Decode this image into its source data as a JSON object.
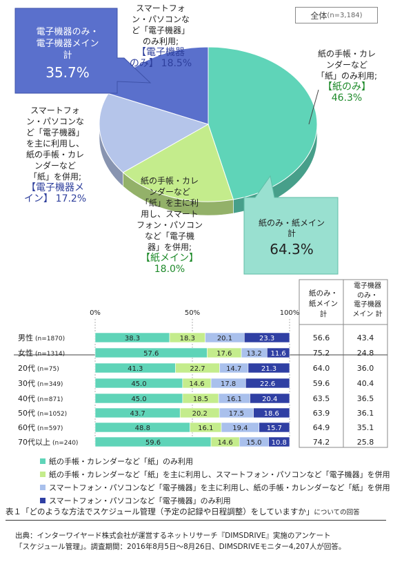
{
  "total_badge": {
    "label": "全体",
    "n": "(n=3,184)"
  },
  "pie_labels": {
    "paper_only": {
      "text": [
        "紙の手帳・カレ",
        "ンダーなど",
        "「紙」のみ利用;"
      ],
      "highlight": "【紙のみ】",
      "pct": "46.3%"
    },
    "paper_main": {
      "text": [
        "紙の手帳・カレ",
        "ンダーなど",
        "「紙」を主に利",
        "用し、スマート",
        "フォン・パソコン",
        "など「電子機",
        "器」を併用;"
      ],
      "highlight": "【紙メイン】",
      "pct": "18.0%"
    },
    "elec_main": {
      "text": [
        "スマートフォ",
        "ン・パソコンな",
        "ど「電子機器」",
        "を主に利用し、",
        "紙の手帳・カレ",
        "ンダーなど",
        "「紙」を併用;"
      ],
      "highlight1": "【電子機器メ",
      "highlight2": "イン】",
      "pct": "17.2%"
    },
    "elec_only": {
      "text": [
        "スマートフォ",
        "ン・パソコンな",
        "ど「電子機器」",
        "のみ利用;"
      ],
      "highlight1": "【電子機器",
      "highlight2": "のみ】",
      "pct": "18.5%"
    }
  },
  "callouts": {
    "electronic": {
      "line1": "電子機器のみ・",
      "line2": "電子機器メイン",
      "line3": "計",
      "value": "35.7%"
    },
    "paper": {
      "line1": "紙のみ・紙メイン",
      "line2": "計",
      "value": "64.3%"
    }
  },
  "table_headers": {
    "paper": [
      "紙のみ・",
      "紙メイン",
      "計"
    ],
    "electronic": [
      "電子機器",
      "のみ・",
      "電子機器",
      "メイン 計"
    ]
  },
  "axis_ticks": [
    "0%",
    "50%",
    "100%"
  ],
  "legend": [
    {
      "label": "紙の手帳・カレンダーなど「紙」のみ利用",
      "color": "#5fd4b8"
    },
    {
      "label": "紙の手帳・カレンダーなど「紙」を主に利用し、スマートフォン・パソコンなど「電子機器」を併用",
      "color": "#c4ec8c"
    },
    {
      "label": "スマートフォン・パソコンなど「電子機器」を主に利用し、紙の手帳・カレンダーなど「紙」を併用",
      "color": "#a9c0ec"
    },
    {
      "label": "スマートフォン・パソコンなど「電子機器」のみ利用",
      "color": "#2f3fa3"
    }
  ],
  "caption": {
    "main": "表１「どのような方法でスケジュール管理（予定の記録や日程調整）をしていますか」",
    "small": "についての回答"
  },
  "source": {
    "line1": "出典：インターワイヤード株式会社が運営するネットリサーチ『DIMSDRIVE』実施のアンケート",
    "line2": "「スケジュール管理」。調査期間：2016年8月5日～8月26日、DIMSDRIVEモニター4,207人が回答。"
  },
  "chart_data": [
    {
      "type": "pie",
      "title": "全体(n=3,184)",
      "categories": [
        "【紙のみ】",
        "【紙メイン】",
        "【電子機器メイン】",
        "【電子機器のみ】"
      ],
      "values": [
        46.3,
        18.0,
        17.2,
        18.5
      ],
      "colors": [
        "#5fd4b8",
        "#c4ec8c",
        "#b5c5ea",
        "#5a70cc"
      ]
    },
    {
      "type": "bar",
      "orientation": "horizontal-stacked-100",
      "categories": [
        "男性",
        "女性",
        "20代",
        "30代",
        "40代",
        "50代",
        "60代",
        "70代以上"
      ],
      "n_labels": [
        "(n=1870)",
        "(n=1314)",
        "(n=75)",
        "(n=349)",
        "(n=871)",
        "(n=1052)",
        "(n=597)",
        "(n=240)"
      ],
      "series": [
        {
          "name": "紙の手帳・カレンダーなど「紙」のみ利用",
          "values": [
            38.3,
            57.6,
            41.3,
            45.0,
            45.0,
            43.7,
            48.8,
            59.6
          ]
        },
        {
          "name": "紙の手帳・カレンダーなど「紙」を主に利用し、スマートフォン・パソコンなど「電子機器」を併用",
          "values": [
            18.3,
            17.6,
            22.7,
            14.6,
            18.5,
            20.2,
            16.1,
            14.6
          ]
        },
        {
          "name": "スマートフォン・パソコンなど「電子機器」を主に利用し、紙の手帳・カレンダーなど「紙」を併用",
          "values": [
            20.1,
            13.2,
            14.7,
            17.8,
            16.1,
            17.5,
            19.4,
            15.0
          ]
        },
        {
          "name": "スマートフォン・パソコンなど「電子機器」のみ利用",
          "values": [
            23.3,
            11.6,
            21.3,
            22.6,
            20.4,
            18.6,
            15.7,
            10.8
          ]
        }
      ],
      "xlim": [
        0,
        100
      ],
      "totals": {
        "paper_total": [
          56.6,
          75.2,
          64.0,
          59.6,
          63.5,
          63.9,
          64.9,
          74.2
        ],
        "electronic_total": [
          43.4,
          24.8,
          36.0,
          40.4,
          36.5,
          36.1,
          35.1,
          25.8
        ]
      }
    }
  ]
}
